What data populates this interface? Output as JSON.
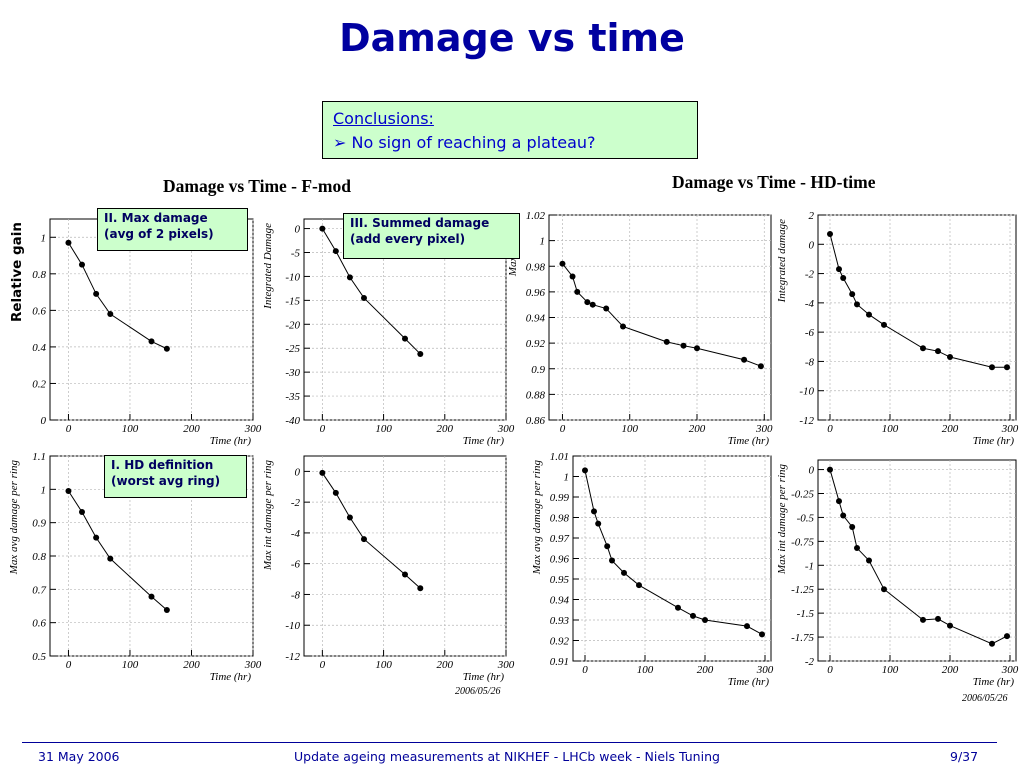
{
  "slide": {
    "title": "Damage vs time",
    "conclusions_heading": "Conclusions:",
    "conclusions_bullet": "➢ No sign of reaching a plateau?",
    "group_left_title": "Damage vs Time - F-mod",
    "group_right_title": "Damage vs Time - HD-time",
    "relative_gain_label": "Relative gain",
    "callout_max": [
      "II.  Max damage",
      "(avg of 2 pixels)"
    ],
    "callout_sum": [
      "III. Summed damage",
      "(add every pixel)"
    ],
    "callout_hd": [
      "I.  HD definition",
      "(worst avg ring)"
    ],
    "date_left": "2006/05/26",
    "date_right": "2006/05/26",
    "footer_date": "31 May 2006",
    "footer_center": "Update ageing measurements at NIKHEF - LHCb week - Niels Tuning",
    "footer_page": "9/37"
  },
  "chart_data": [
    {
      "id": "fmod-max",
      "type": "line",
      "xlabel": "Time (hr)",
      "ylabel": "",
      "xlim": [
        -30,
        300
      ],
      "ylim": [
        0,
        1.1
      ],
      "xticks": [
        0,
        100,
        200,
        300
      ],
      "yticks": [
        0,
        0.2,
        0.4,
        0.6,
        0.8,
        1
      ],
      "grid": true,
      "x": [
        0,
        22,
        45,
        68,
        135,
        160
      ],
      "y": [
        0.97,
        0.85,
        0.69,
        0.58,
        0.43,
        0.39
      ]
    },
    {
      "id": "fmod-int",
      "type": "line",
      "xlabel": "Time (hr)",
      "ylabel": "Integrated Damage",
      "xlim": [
        -30,
        300
      ],
      "ylim": [
        -40,
        2
      ],
      "xticks": [
        0,
        100,
        200,
        300
      ],
      "yticks": [
        0,
        -5,
        -10,
        -15,
        -20,
        -25,
        -30,
        -35,
        -40
      ],
      "grid": true,
      "x": [
        0,
        22,
        45,
        68,
        135,
        160
      ],
      "y": [
        0,
        -4.7,
        -10.2,
        -14.5,
        -23,
        -26.2
      ]
    },
    {
      "id": "hd-max",
      "type": "line",
      "xlabel": "Time (hr)",
      "ylabel": "Max damage",
      "xlim": [
        -20,
        310
      ],
      "ylim": [
        0.86,
        1.02
      ],
      "xticks": [
        0,
        100,
        200,
        300
      ],
      "yticks": [
        0.86,
        0.88,
        0.9,
        0.92,
        0.94,
        0.96,
        0.98,
        1,
        1.02
      ],
      "grid": true,
      "x": [
        0,
        15,
        22,
        37,
        45,
        65,
        90,
        155,
        180,
        200,
        270,
        295
      ],
      "y": [
        0.982,
        0.972,
        0.96,
        0.952,
        0.95,
        0.947,
        0.933,
        0.921,
        0.918,
        0.916,
        0.907,
        0.902
      ]
    },
    {
      "id": "hd-int",
      "type": "line",
      "xlabel": "Time (hr)",
      "ylabel": "Integrated damage",
      "xlim": [
        -20,
        310
      ],
      "ylim": [
        -12,
        2
      ],
      "xticks": [
        0,
        100,
        200,
        300
      ],
      "yticks": [
        2,
        0,
        -2,
        -4,
        -6,
        -8,
        -10,
        -12
      ],
      "grid": true,
      "x": [
        0,
        15,
        22,
        37,
        45,
        65,
        90,
        155,
        180,
        200,
        270,
        295
      ],
      "y": [
        0.7,
        -1.7,
        -2.3,
        -3.4,
        -4.1,
        -4.8,
        -5.5,
        -7.1,
        -7.3,
        -7.7,
        -8.4,
        -8.4
      ]
    },
    {
      "id": "fmod-avg-ring",
      "type": "line",
      "xlabel": "Time (hr)",
      "ylabel": "Max avg damage per ring",
      "xlim": [
        -30,
        300
      ],
      "ylim": [
        0.5,
        1.1
      ],
      "xticks": [
        0,
        100,
        200,
        300
      ],
      "yticks": [
        0.5,
        0.6,
        0.7,
        0.8,
        0.9,
        1,
        1.1
      ],
      "grid": true,
      "x": [
        0,
        22,
        45,
        68,
        135,
        160
      ],
      "y": [
        0.995,
        0.932,
        0.855,
        0.792,
        0.678,
        0.638
      ]
    },
    {
      "id": "fmod-int-ring",
      "type": "line",
      "xlabel": "Time (hr)",
      "ylabel": "Max int damage per ring",
      "xlim": [
        -30,
        300
      ],
      "ylim": [
        -12,
        1
      ],
      "xticks": [
        0,
        100,
        200,
        300
      ],
      "yticks": [
        0,
        -2,
        -4,
        -6,
        -8,
        -10,
        -12
      ],
      "grid": true,
      "x": [
        0,
        22,
        45,
        68,
        135,
        160
      ],
      "y": [
        -0.1,
        -1.4,
        -3,
        -4.4,
        -6.7,
        -7.6
      ]
    },
    {
      "id": "hd-avg-ring",
      "type": "line",
      "xlabel": "Time (hr)",
      "ylabel": "Max avg damage per ring",
      "xlim": [
        -20,
        310
      ],
      "ylim": [
        0.91,
        1.01
      ],
      "xticks": [
        0,
        100,
        200,
        300
      ],
      "yticks": [
        0.91,
        0.92,
        0.93,
        0.94,
        0.95,
        0.96,
        0.97,
        0.98,
        0.99,
        1,
        1.01
      ],
      "grid": true,
      "x": [
        0,
        15,
        22,
        37,
        45,
        65,
        90,
        155,
        180,
        200,
        270,
        295
      ],
      "y": [
        1.003,
        0.983,
        0.977,
        0.966,
        0.959,
        0.953,
        0.947,
        0.936,
        0.932,
        0.93,
        0.927,
        0.923
      ]
    },
    {
      "id": "hd-int-ring",
      "type": "line",
      "xlabel": "Time (hr)",
      "ylabel": "Max int damage per ring",
      "xlim": [
        -20,
        310
      ],
      "ylim": [
        -2,
        0.1
      ],
      "xticks": [
        0,
        100,
        200,
        300
      ],
      "yticks": [
        0,
        -0.25,
        -0.5,
        -0.75,
        -1,
        -1.25,
        -1.5,
        -1.75,
        -2
      ],
      "grid": true,
      "x": [
        0,
        15,
        22,
        37,
        45,
        65,
        90,
        155,
        180,
        200,
        270,
        295
      ],
      "y": [
        0,
        -0.33,
        -0.48,
        -0.6,
        -0.82,
        -0.95,
        -1.25,
        -1.57,
        -1.56,
        -1.63,
        -1.82,
        -1.74
      ]
    }
  ]
}
